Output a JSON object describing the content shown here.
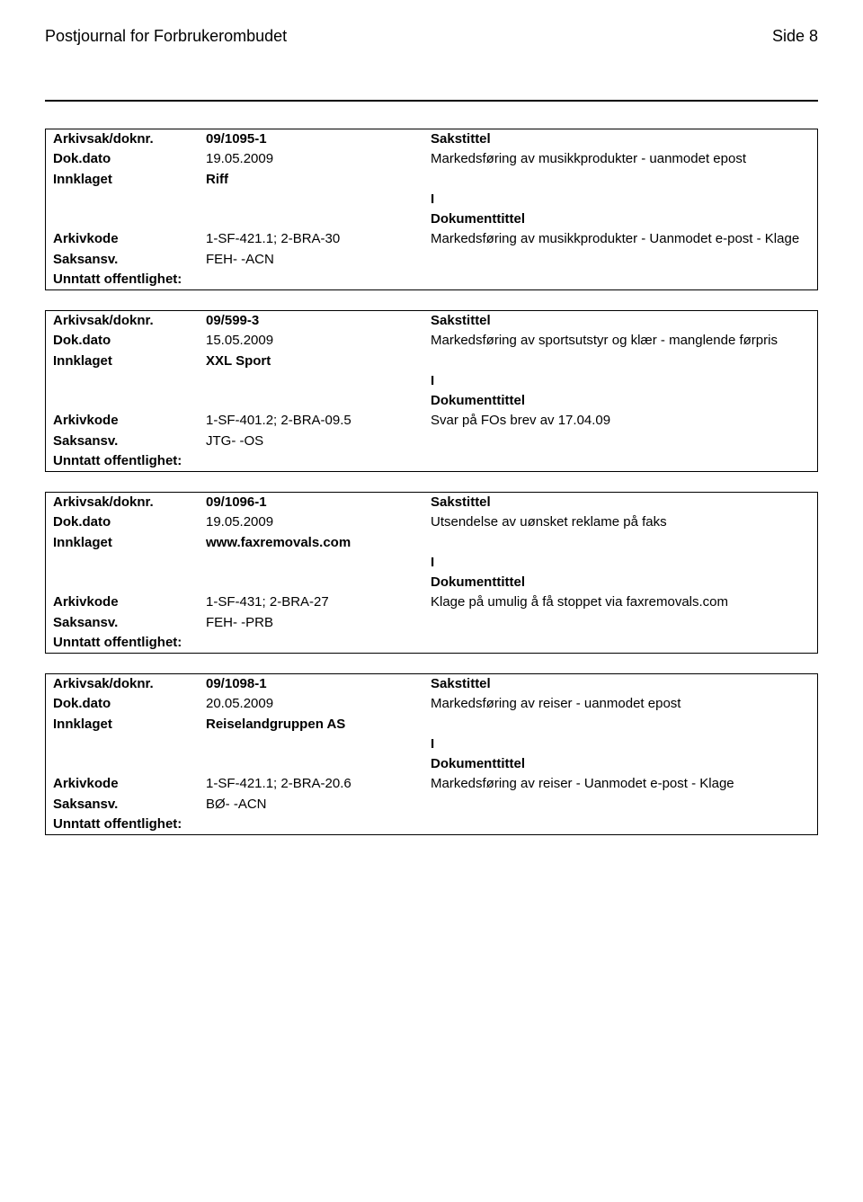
{
  "header": {
    "title": "Postjournal for Forbrukerombudet",
    "page_label": "Side 8"
  },
  "labels": {
    "arkivsak": "Arkivsak/doknr.",
    "dokdato": "Dok.dato",
    "innklaget": "Innklaget",
    "arkivkode": "Arkivkode",
    "saksansv": "Saksansv.",
    "unntatt": "Unntatt offentlighet:",
    "sakstittel": "Sakstittel",
    "dokumenttittel": "Dokumenttittel",
    "io": "I"
  },
  "records": [
    {
      "arkivsak": "09/1095-1",
      "dokdato": "19.05.2009",
      "sakstittel": "Markedsføring av musikkprodukter - uanmodet epost",
      "innklaget": "Riff",
      "arkivkode": "1-SF-421.1; 2-BRA-30",
      "doktittel": "Markedsføring av musikkprodukter - Uanmodet e-post - Klage",
      "saksansv": "FEH- -ACN"
    },
    {
      "arkivsak": "09/599-3",
      "dokdato": "15.05.2009",
      "sakstittel": "Markedsføring av sportsutstyr og klær - manglende førpris",
      "innklaget": "XXL Sport",
      "arkivkode": "1-SF-401.2; 2-BRA-09.5",
      "doktittel": "Svar på FOs brev av 17.04.09",
      "saksansv": "JTG- -OS"
    },
    {
      "arkivsak": "09/1096-1",
      "dokdato": "19.05.2009",
      "sakstittel": "Utsendelse av uønsket reklame på faks",
      "innklaget": "www.faxremovals.com",
      "arkivkode": "1-SF-431; 2-BRA-27",
      "doktittel": "Klage på umulig å få stoppet via faxremovals.com",
      "saksansv": "FEH- -PRB"
    },
    {
      "arkivsak": "09/1098-1",
      "dokdato": "20.05.2009",
      "sakstittel": "Markedsføring av reiser - uanmodet epost",
      "innklaget": "Reiselandgruppen AS",
      "arkivkode": "1-SF-421.1; 2-BRA-20.6",
      "doktittel": "Markedsføring av reiser - Uanmodet e-post - Klage",
      "saksansv": "BØ- -ACN"
    }
  ]
}
